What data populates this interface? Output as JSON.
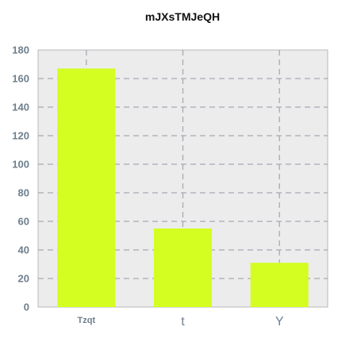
{
  "chart_data": {
    "type": "bar",
    "title": "mJXsTMJeQH",
    "categories": [
      "Tzqt",
      "t",
      "Y"
    ],
    "values": [
      167,
      55,
      31
    ],
    "xlabel": "",
    "ylabel": "",
    "ylim": [
      0,
      180
    ],
    "yticks": [
      0,
      20,
      40,
      60,
      80,
      100,
      120,
      140,
      160,
      180
    ],
    "grid": true,
    "legend": "none",
    "colors": {
      "bar": "#d4fd21",
      "plot_background": "#ececec",
      "grid": "#a7a8b4",
      "tick_label": "#6e7f8d"
    }
  }
}
